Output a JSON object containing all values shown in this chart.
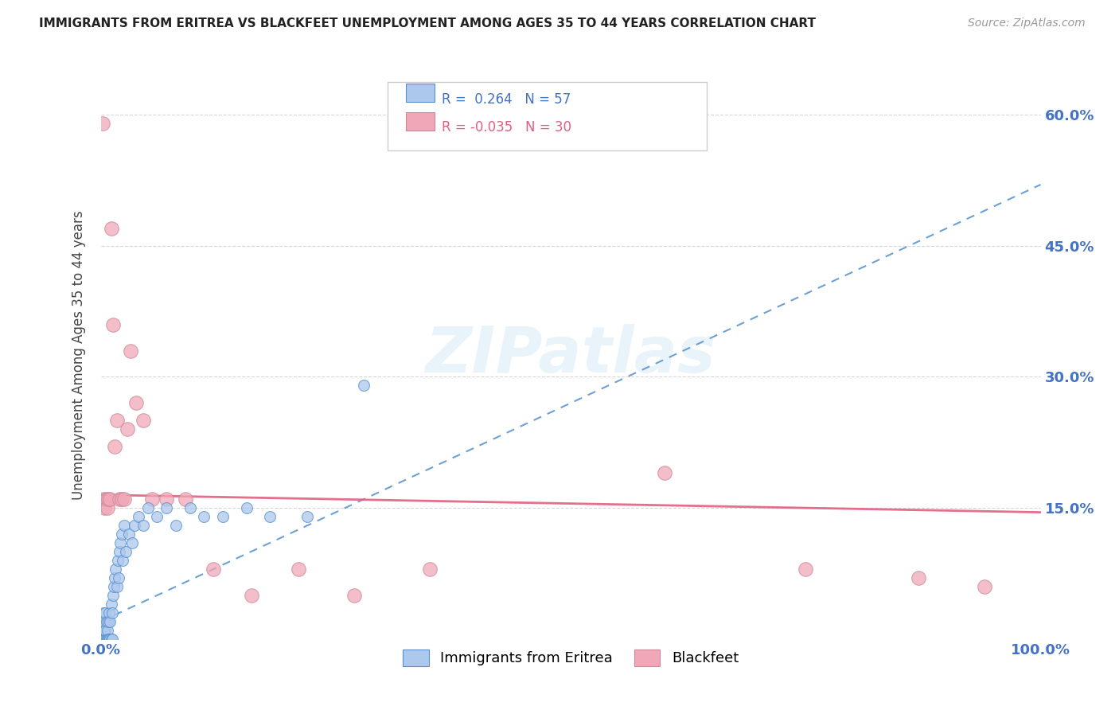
{
  "title": "IMMIGRANTS FROM ERITREA VS BLACKFEET UNEMPLOYMENT AMONG AGES 35 TO 44 YEARS CORRELATION CHART",
  "source": "Source: ZipAtlas.com",
  "ylabel": "Unemployment Among Ages 35 to 44 years",
  "yticks": [
    0.0,
    0.15,
    0.3,
    0.45,
    0.6
  ],
  "ytick_labels": [
    "",
    "15.0%",
    "30.0%",
    "45.0%",
    "60.0%"
  ],
  "xlim": [
    0.0,
    1.0
  ],
  "ylim": [
    0.0,
    0.65
  ],
  "legend_R_eritrea": "0.264",
  "legend_N_eritrea": "57",
  "legend_R_blackfeet": "-0.035",
  "legend_N_blackfeet": "30",
  "color_eritrea": "#adc8ed",
  "color_blackfeet": "#f0a8b8",
  "color_eritrea_line": "#5590cc",
  "color_blackfeet_line": "#e06080",
  "watermark": "ZIPatlas",
  "eritrea_x": [
    0.001,
    0.001,
    0.002,
    0.002,
    0.002,
    0.003,
    0.003,
    0.003,
    0.004,
    0.004,
    0.004,
    0.005,
    0.005,
    0.005,
    0.006,
    0.006,
    0.007,
    0.007,
    0.008,
    0.008,
    0.009,
    0.009,
    0.01,
    0.01,
    0.011,
    0.011,
    0.012,
    0.012,
    0.013,
    0.014,
    0.015,
    0.016,
    0.017,
    0.018,
    0.019,
    0.02,
    0.021,
    0.022,
    0.023,
    0.025,
    0.027,
    0.03,
    0.033,
    0.036,
    0.04,
    0.045,
    0.05,
    0.06,
    0.07,
    0.08,
    0.095,
    0.11,
    0.13,
    0.155,
    0.18,
    0.22,
    0.28
  ],
  "eritrea_y": [
    0.0,
    0.01,
    0.0,
    0.01,
    0.02,
    0.0,
    0.01,
    0.03,
    0.0,
    0.01,
    0.02,
    0.0,
    0.01,
    0.03,
    0.0,
    0.02,
    0.0,
    0.01,
    0.0,
    0.02,
    0.0,
    0.03,
    0.0,
    0.02,
    0.0,
    0.04,
    0.0,
    0.03,
    0.05,
    0.06,
    0.07,
    0.08,
    0.06,
    0.09,
    0.07,
    0.1,
    0.11,
    0.12,
    0.09,
    0.13,
    0.1,
    0.12,
    0.11,
    0.13,
    0.14,
    0.13,
    0.15,
    0.14,
    0.15,
    0.13,
    0.15,
    0.14,
    0.14,
    0.15,
    0.14,
    0.14,
    0.29
  ],
  "blackfeet_x": [
    0.002,
    0.003,
    0.004,
    0.006,
    0.007,
    0.008,
    0.01,
    0.011,
    0.013,
    0.015,
    0.017,
    0.02,
    0.022,
    0.025,
    0.028,
    0.032,
    0.038,
    0.045,
    0.055,
    0.07,
    0.09,
    0.12,
    0.16,
    0.21,
    0.27,
    0.35,
    0.6,
    0.75,
    0.87,
    0.94
  ],
  "blackfeet_y": [
    0.59,
    0.16,
    0.15,
    0.16,
    0.15,
    0.16,
    0.16,
    0.47,
    0.36,
    0.22,
    0.25,
    0.16,
    0.16,
    0.16,
    0.24,
    0.33,
    0.27,
    0.25,
    0.16,
    0.16,
    0.16,
    0.08,
    0.05,
    0.08,
    0.05,
    0.08,
    0.19,
    0.08,
    0.07,
    0.06
  ],
  "eritrea_trend_x": [
    0.0,
    1.0
  ],
  "eritrea_trend_y": [
    0.02,
    0.52
  ],
  "blackfeet_trend_x": [
    0.0,
    1.0
  ],
  "blackfeet_trend_y": [
    0.165,
    0.145
  ]
}
